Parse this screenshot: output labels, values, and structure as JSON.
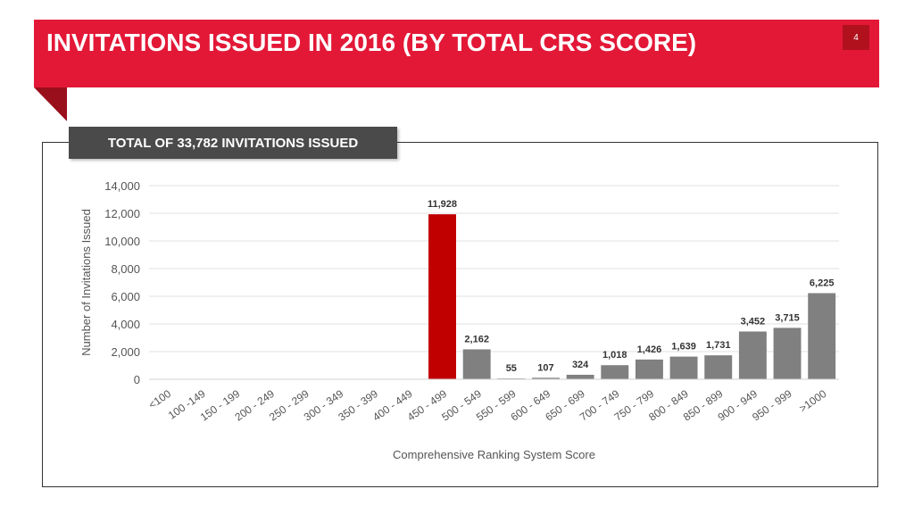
{
  "slide": {
    "title": "INVITATIONS ISSUED IN 2016 (BY TOTAL CRS SCORE)",
    "page_number": "4",
    "subtitle": "TOTAL OF 33,782 INVITATIONS ISSUED"
  },
  "colors": {
    "banner": "#e31837",
    "highlight_bar": "#c00000",
    "bar": "#808080"
  },
  "chart_data": {
    "type": "bar",
    "xlabel": "Comprehensive Ranking System Score",
    "ylabel": "Number of Invitations Issued",
    "ylim": [
      0,
      14000
    ],
    "yticks": [
      "0",
      "2,000",
      "4,000",
      "6,000",
      "8,000",
      "10,000",
      "12,000",
      "14,000"
    ],
    "grid": true,
    "categories": [
      "<100",
      "100 -149",
      "150 - 199",
      "200 - 249",
      "250 - 299",
      "300 - 349",
      "350 - 399",
      "400 - 449",
      "450 - 499",
      "500 - 549",
      "550 - 599",
      "600 - 649",
      "650 - 699",
      "700 - 749",
      "750 - 799",
      "800 - 849",
      "850 - 899",
      "900 - 949",
      "950 - 999",
      ">1000"
    ],
    "values": [
      0,
      0,
      0,
      0,
      0,
      0,
      0,
      0,
      11928,
      2162,
      55,
      107,
      324,
      1018,
      1426,
      1639,
      1731,
      3452,
      3715,
      6225
    ],
    "data_labels": [
      "",
      "",
      "",
      "",
      "",
      "",
      "",
      "",
      "11,928",
      "2,162",
      "55",
      "107",
      "324",
      "1,018",
      "1,426",
      "1,639",
      "1,731",
      "3,452",
      "3,715",
      "6,225"
    ],
    "highlight_category": "450 - 499"
  }
}
